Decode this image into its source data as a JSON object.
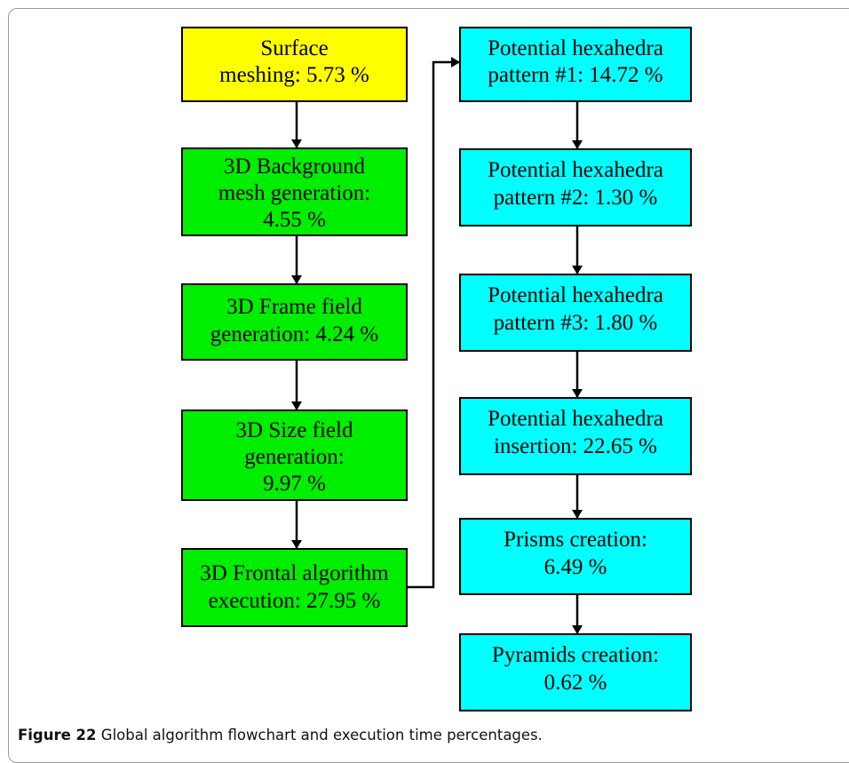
{
  "colors": {
    "start": "#ffff00",
    "process": "#00ee00",
    "pattern": "#00ffff",
    "border": "#000000",
    "arrow": "#000000"
  },
  "nodes": {
    "surface": {
      "lines": [
        "Surface",
        "meshing: 5.73 %"
      ]
    },
    "background": {
      "lines": [
        "3D Background",
        "mesh generation:",
        "4.55 %"
      ]
    },
    "frame": {
      "lines": [
        "3D Frame field",
        "generation: 4.24 %"
      ]
    },
    "size": {
      "lines": [
        "3D Size field",
        "generation:",
        "9.97 %"
      ]
    },
    "frontal": {
      "lines": [
        "3D Frontal algorithm",
        "execution: 27.95 %"
      ]
    },
    "pattern1": {
      "lines": [
        "Potential hexahedra",
        "pattern #1: 14.72 %"
      ]
    },
    "pattern2": {
      "lines": [
        "Potential hexahedra",
        "pattern #2: 1.30 %"
      ]
    },
    "pattern3": {
      "lines": [
        "Potential hexahedra",
        "pattern #3: 1.80 %"
      ]
    },
    "insertion": {
      "lines": [
        "Potential hexahedra",
        "insertion: 22.65 %"
      ]
    },
    "prisms": {
      "lines": [
        "Prisms creation:",
        "6.49 %"
      ]
    },
    "pyramids": {
      "lines": [
        "Pyramids creation:",
        "0.62 %"
      ]
    }
  },
  "caption": {
    "label": "Figure 22",
    "text": "Global algorithm flowchart and execution time percentages."
  }
}
